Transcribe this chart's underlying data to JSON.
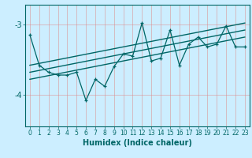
{
  "xlabel": "Humidex (Indice chaleur)",
  "bg_color": "#cceeff",
  "line_color": "#006666",
  "grid_color": "#dd8888",
  "x_ticks": [
    0,
    1,
    2,
    3,
    4,
    5,
    6,
    7,
    8,
    9,
    10,
    11,
    12,
    13,
    14,
    15,
    16,
    17,
    18,
    19,
    20,
    21,
    22,
    23
  ],
  "y_ticks": [
    -4,
    -3
  ],
  "ylim": [
    -4.45,
    -2.72
  ],
  "xlim": [
    -0.5,
    23.5
  ],
  "data_x": [
    0,
    1,
    2,
    3,
    4,
    5,
    6,
    7,
    8,
    9,
    10,
    11,
    12,
    13,
    14,
    15,
    16,
    17,
    18,
    19,
    20,
    21,
    22,
    23
  ],
  "data_y": [
    -3.15,
    -3.58,
    -3.68,
    -3.72,
    -3.72,
    -3.68,
    -4.08,
    -3.78,
    -3.88,
    -3.6,
    -3.42,
    -3.45,
    -2.98,
    -3.52,
    -3.48,
    -3.08,
    -3.58,
    -3.28,
    -3.18,
    -3.32,
    -3.28,
    -3.02,
    -3.32,
    -3.32
  ],
  "trend1_x": [
    0,
    23
  ],
  "trend1_y": [
    -3.78,
    -3.18
  ],
  "trend2_x": [
    0,
    23
  ],
  "trend2_y": [
    -3.68,
    -3.08
  ],
  "trend3_x": [
    0,
    23
  ],
  "trend3_y": [
    -3.58,
    -2.98
  ],
  "tick_fontsize": 5.5,
  "xlabel_fontsize": 7,
  "ytick_fontsize": 7
}
